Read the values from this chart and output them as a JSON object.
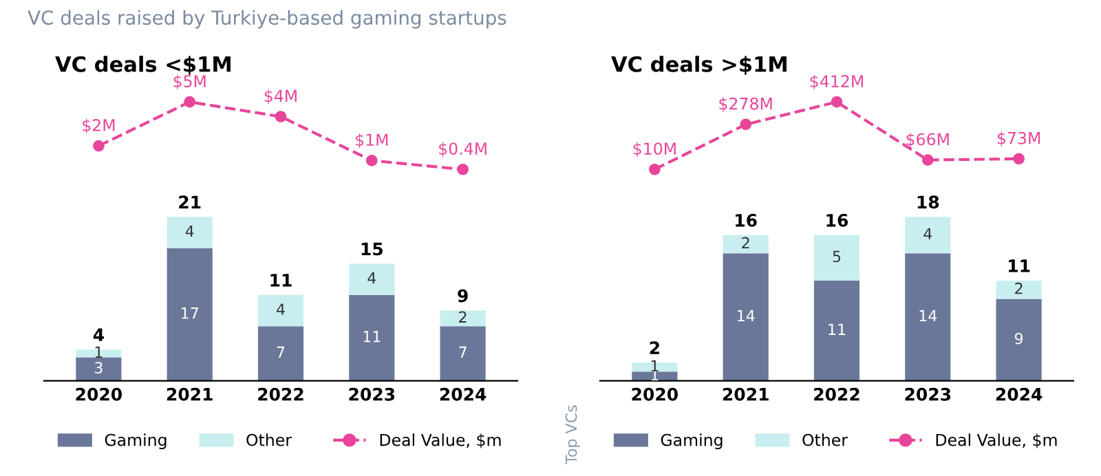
{
  "chart_data": [
    {
      "type": "bar",
      "categories": [
        "2020",
        "2021",
        "2022",
        "2023",
        "2024"
      ],
      "stacked": true,
      "data_labels": true,
      "totals": [
        "4",
        "21",
        "11",
        "15",
        "9"
      ],
      "legend": "bottom",
      "grid": false,
      "series": [
        {
          "name": "Gaming",
          "color": "#6b7799",
          "values": [
            3,
            17,
            7,
            11,
            7
          ]
        },
        {
          "name": "Other",
          "color": "#c9eef0",
          "values": [
            1,
            4,
            4,
            4,
            2
          ]
        }
      ]
    },
    {
      "type": "line",
      "title": "VC deals raised by Turkiye-based gaming startups",
      "subtitle": "VC deals <$1M",
      "categories": [
        null,
        null,
        null,
        null,
        null
      ],
      "legend": "bottom",
      "grid": false,
      "series": [
        {
          "name": "Deal Value, $m",
          "color": "#e8459a",
          "marker": "circle",
          "line_style": "dashed",
          "values": [
            2,
            5,
            4,
            1,
            0.4
          ],
          "value_labels": [
            "$2M",
            "$5M",
            "$4M",
            "$1M",
            "$0.4M"
          ]
        }
      ]
    },
    {
      "type": "bar",
      "categories": [
        "2020",
        "2021",
        "2022",
        "2023",
        "2024"
      ],
      "stacked": true,
      "data_labels": true,
      "totals": [
        "2",
        "16",
        "16",
        "18",
        "11"
      ],
      "legend": "bottom",
      "grid": false,
      "annotations": [
        "Top VCs"
      ],
      "series": [
        {
          "name": "Gaming",
          "color": "#6b7799",
          "values": [
            1,
            14,
            11,
            14,
            9
          ]
        },
        {
          "name": "Other",
          "color": "#c9eef0",
          "values": [
            1,
            2,
            5,
            4,
            2
          ]
        }
      ]
    },
    {
      "type": "line",
      "subtitle": "VC deals >$1M",
      "categories": [
        null,
        null,
        null,
        null,
        null
      ],
      "legend": "bottom",
      "grid": false,
      "series": [
        {
          "name": "Deal Value, $m",
          "color": "#e8459a",
          "marker": "circle",
          "line_style": "dashed",
          "values": [
            10,
            278,
            412,
            66,
            73
          ],
          "value_labels": [
            "$10M",
            "$278M",
            "$412M",
            "$66M",
            "$73M"
          ]
        }
      ]
    }
  ]
}
